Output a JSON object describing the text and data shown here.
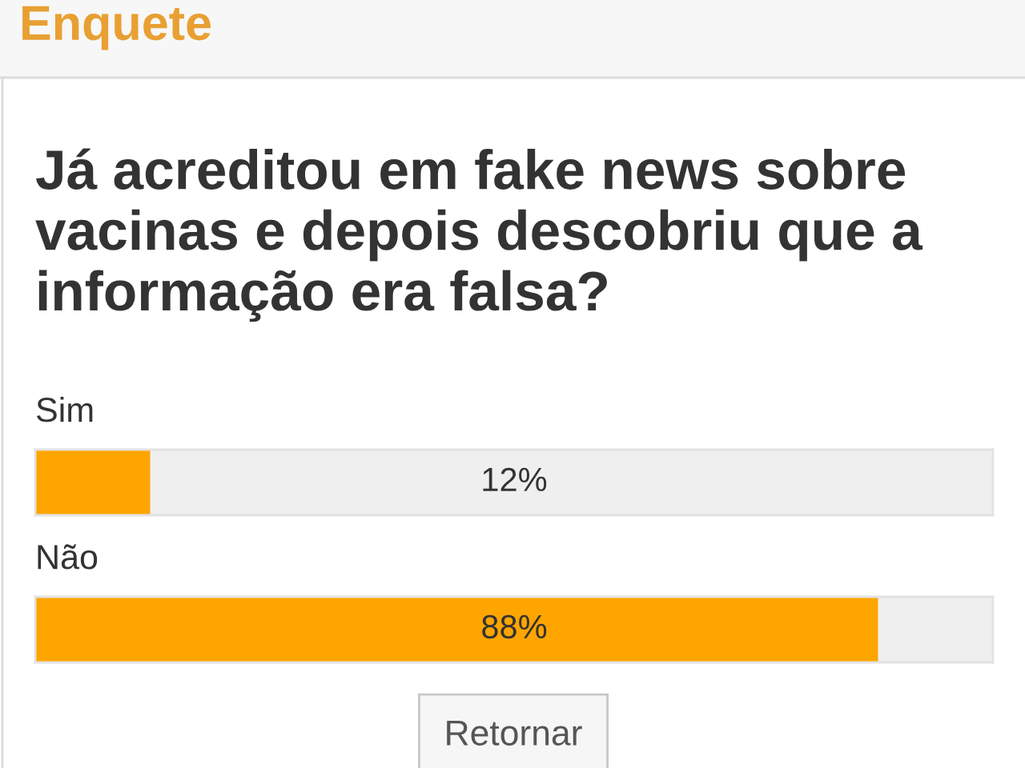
{
  "chart_data": {
    "type": "bar",
    "orientation": "horizontal",
    "title": "Enquete",
    "subtitle": "Já acreditou em fake news sobre vacinas e depois descobriu que a informação era falsa?",
    "categories": [
      "Sim",
      "Não"
    ],
    "values": [
      12,
      88
    ],
    "color": "#ffa500",
    "value_labels": [
      "12%",
      "88%"
    ],
    "xlim": [
      0,
      100
    ],
    "annotations": [
      "Retornar"
    ]
  }
}
